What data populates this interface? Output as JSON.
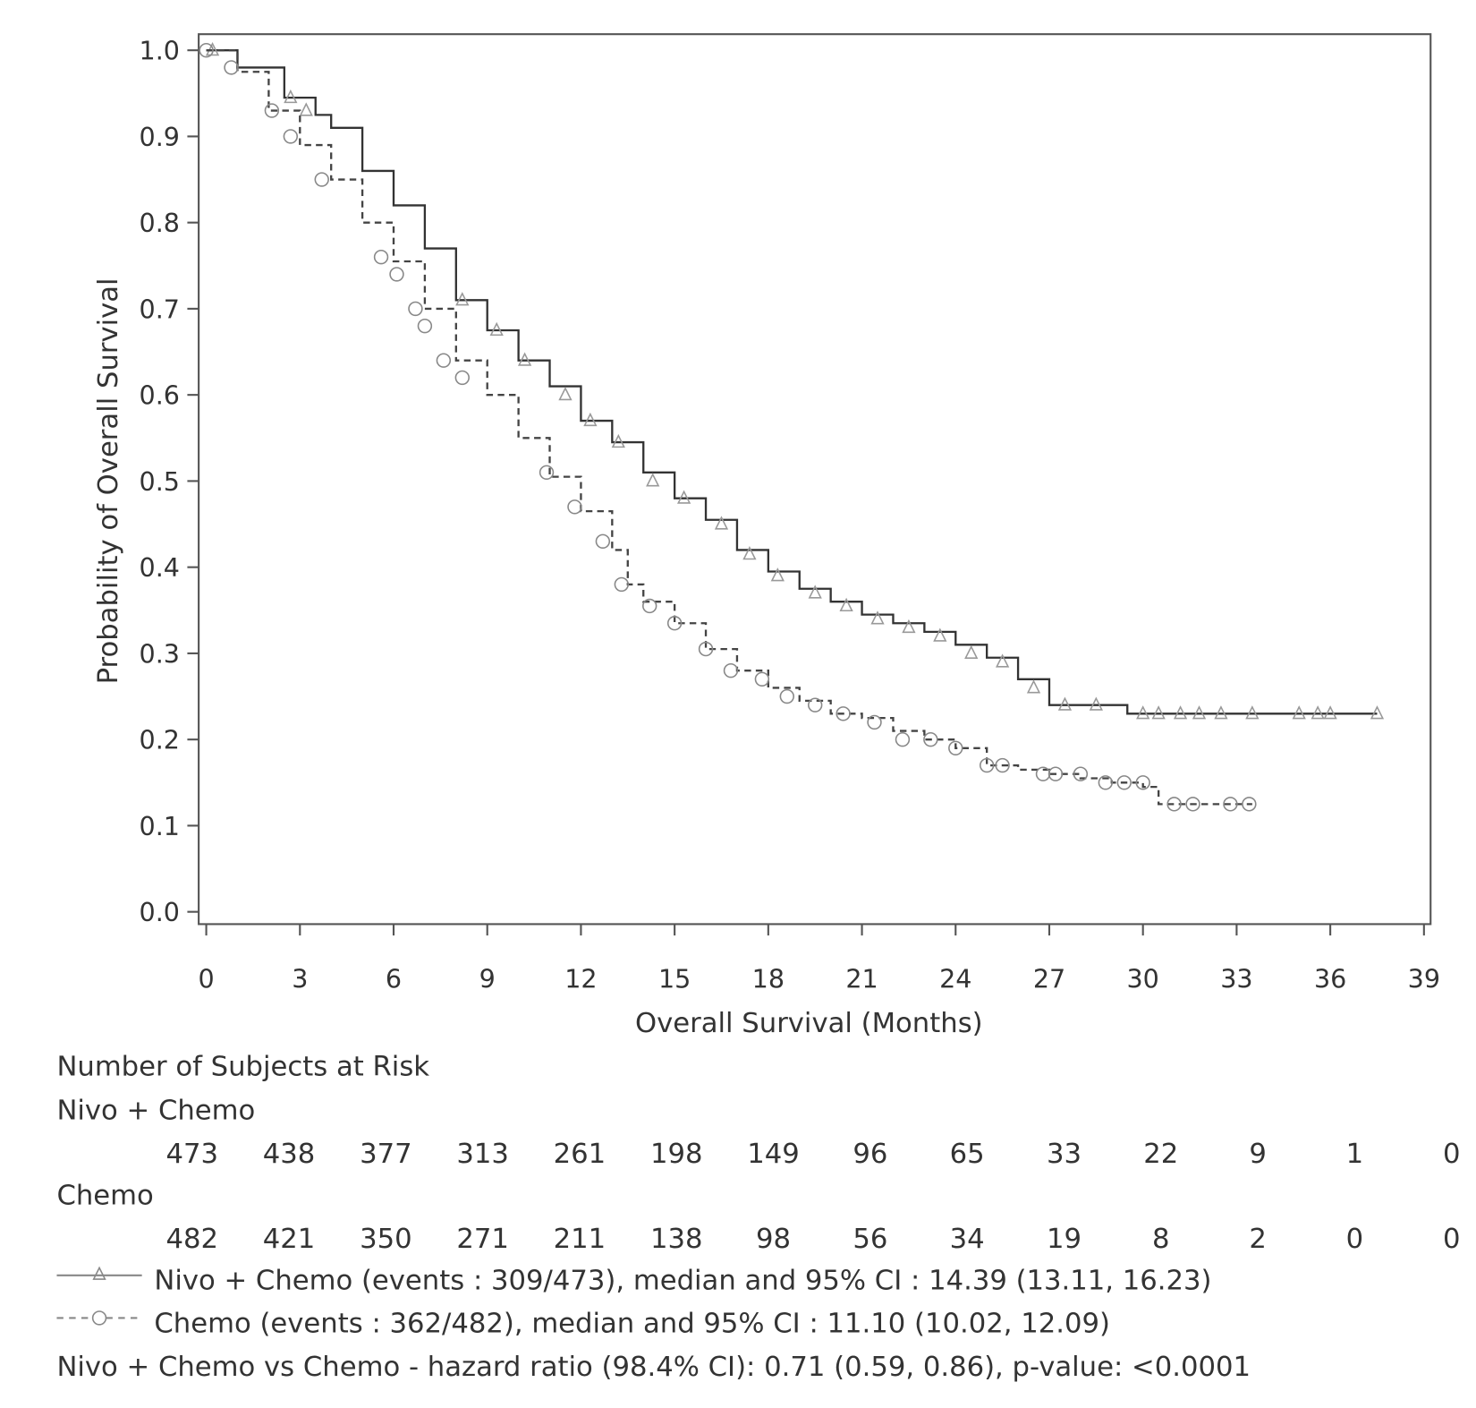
{
  "chart_data": {
    "type": "line",
    "subtype": "kaplan-meier",
    "title": "",
    "xlabel": "Overall Survival (Months)",
    "ylabel": "Probability of Overall Survival",
    "xlim": [
      0,
      39
    ],
    "ylim": [
      0,
      1.0
    ],
    "xticks": [
      "0",
      "3",
      "6",
      "9",
      "12",
      "15",
      "18",
      "21",
      "24",
      "27",
      "30",
      "33",
      "36",
      "39"
    ],
    "yticks": [
      "0.0",
      "0.1",
      "0.2",
      "0.3",
      "0.4",
      "0.5",
      "0.6",
      "0.7",
      "0.8",
      "0.9",
      "1.0"
    ],
    "grid": false,
    "series": [
      {
        "name": "Nivo + Chemo",
        "line_style": "solid",
        "marker": "triangle",
        "color": "#333333",
        "points": [
          [
            0,
            1.0
          ],
          [
            1,
            0.98
          ],
          [
            2.5,
            0.945
          ],
          [
            3.5,
            0.925
          ],
          [
            4,
            0.91
          ],
          [
            5,
            0.86
          ],
          [
            6,
            0.82
          ],
          [
            7,
            0.77
          ],
          [
            8,
            0.71
          ],
          [
            9,
            0.675
          ],
          [
            10,
            0.64
          ],
          [
            11,
            0.61
          ],
          [
            12,
            0.57
          ],
          [
            13,
            0.545
          ],
          [
            14,
            0.51
          ],
          [
            15,
            0.48
          ],
          [
            16,
            0.455
          ],
          [
            17,
            0.42
          ],
          [
            18,
            0.395
          ],
          [
            19,
            0.375
          ],
          [
            20,
            0.36
          ],
          [
            21,
            0.345
          ],
          [
            22,
            0.335
          ],
          [
            23,
            0.325
          ],
          [
            24,
            0.31
          ],
          [
            25,
            0.295
          ],
          [
            26,
            0.27
          ],
          [
            27,
            0.24
          ],
          [
            29.5,
            0.23
          ],
          [
            37.5,
            0.23
          ]
        ],
        "censored": [
          [
            0.2,
            1.0
          ],
          [
            2.7,
            0.945
          ],
          [
            3.2,
            0.93
          ],
          [
            8.2,
            0.71
          ],
          [
            9.3,
            0.675
          ],
          [
            10.2,
            0.64
          ],
          [
            11.5,
            0.6
          ],
          [
            12.3,
            0.57
          ],
          [
            13.2,
            0.545
          ],
          [
            14.3,
            0.5
          ],
          [
            15.3,
            0.48
          ],
          [
            16.5,
            0.45
          ],
          [
            17.4,
            0.415
          ],
          [
            18.3,
            0.39
          ],
          [
            19.5,
            0.37
          ],
          [
            20.5,
            0.355
          ],
          [
            21.5,
            0.34
          ],
          [
            22.5,
            0.33
          ],
          [
            23.5,
            0.32
          ],
          [
            24.5,
            0.3
          ],
          [
            25.5,
            0.29
          ],
          [
            26.5,
            0.26
          ],
          [
            27.5,
            0.24
          ],
          [
            28.5,
            0.24
          ],
          [
            30,
            0.23
          ],
          [
            30.5,
            0.23
          ],
          [
            31.2,
            0.23
          ],
          [
            31.8,
            0.23
          ],
          [
            32.5,
            0.23
          ],
          [
            33.5,
            0.23
          ],
          [
            35,
            0.23
          ],
          [
            35.6,
            0.23
          ],
          [
            36,
            0.23
          ],
          [
            37.5,
            0.23
          ]
        ],
        "legend": "Nivo + Chemo (events : 309/473), median and 95% CI : 14.39 (13.11, 16.23)"
      },
      {
        "name": "Chemo",
        "line_style": "dashed",
        "marker": "circle",
        "color": "#444444",
        "points": [
          [
            0,
            1.0
          ],
          [
            1,
            0.975
          ],
          [
            2,
            0.93
          ],
          [
            3,
            0.89
          ],
          [
            4,
            0.85
          ],
          [
            5,
            0.8
          ],
          [
            6,
            0.755
          ],
          [
            7,
            0.7
          ],
          [
            8,
            0.64
          ],
          [
            9,
            0.6
          ],
          [
            10,
            0.55
          ],
          [
            11,
            0.505
          ],
          [
            12,
            0.465
          ],
          [
            13,
            0.42
          ],
          [
            13.5,
            0.38
          ],
          [
            14,
            0.36
          ],
          [
            15,
            0.335
          ],
          [
            16,
            0.305
          ],
          [
            17,
            0.28
          ],
          [
            18,
            0.26
          ],
          [
            19,
            0.245
          ],
          [
            20,
            0.23
          ],
          [
            21,
            0.225
          ],
          [
            22,
            0.21
          ],
          [
            23,
            0.2
          ],
          [
            24,
            0.19
          ],
          [
            25,
            0.17
          ],
          [
            26,
            0.165
          ],
          [
            27,
            0.16
          ],
          [
            28,
            0.155
          ],
          [
            29,
            0.15
          ],
          [
            30,
            0.145
          ],
          [
            30.5,
            0.125
          ],
          [
            33.5,
            0.125
          ]
        ],
        "censored": [
          [
            0,
            1.0
          ],
          [
            0.8,
            0.98
          ],
          [
            2.1,
            0.93
          ],
          [
            2.7,
            0.9
          ],
          [
            3.7,
            0.85
          ],
          [
            5.6,
            0.76
          ],
          [
            6.1,
            0.74
          ],
          [
            6.7,
            0.7
          ],
          [
            7,
            0.68
          ],
          [
            7.6,
            0.64
          ],
          [
            8.2,
            0.62
          ],
          [
            10.9,
            0.51
          ],
          [
            11.8,
            0.47
          ],
          [
            12.7,
            0.43
          ],
          [
            13.3,
            0.38
          ],
          [
            14.2,
            0.355
          ],
          [
            15,
            0.335
          ],
          [
            16,
            0.305
          ],
          [
            16.8,
            0.28
          ],
          [
            17.8,
            0.27
          ],
          [
            18.6,
            0.25
          ],
          [
            19.5,
            0.24
          ],
          [
            20.4,
            0.23
          ],
          [
            21.4,
            0.22
          ],
          [
            22.3,
            0.2
          ],
          [
            23.2,
            0.2
          ],
          [
            24,
            0.19
          ],
          [
            25,
            0.17
          ],
          [
            25.5,
            0.17
          ],
          [
            26.8,
            0.16
          ],
          [
            27.2,
            0.16
          ],
          [
            28,
            0.16
          ],
          [
            28.8,
            0.15
          ],
          [
            29.4,
            0.15
          ],
          [
            30,
            0.15
          ],
          [
            31,
            0.125
          ],
          [
            31.6,
            0.125
          ],
          [
            32.8,
            0.125
          ],
          [
            33.4,
            0.125
          ]
        ],
        "legend": "Chemo (events : 362/482), median and 95% CI : 11.10 (10.02, 12.09)"
      }
    ],
    "risk_table": {
      "title": "Number of Subjects at Risk",
      "rows": [
        {
          "label": "Nivo + Chemo",
          "values": [
            "473",
            "438",
            "377",
            "313",
            "261",
            "198",
            "149",
            "96",
            "65",
            "33",
            "22",
            "9",
            "1",
            "0"
          ]
        },
        {
          "label": "Chemo",
          "values": [
            "482",
            "421",
            "350",
            "271",
            "211",
            "138",
            "98",
            "56",
            "34",
            "19",
            "8",
            "2",
            "0",
            "0"
          ]
        }
      ]
    },
    "footnote": "Nivo + Chemo vs Chemo - hazard ratio (98.4% CI): 0.71 (0.59, 0.86), p-value: <0.0001"
  }
}
